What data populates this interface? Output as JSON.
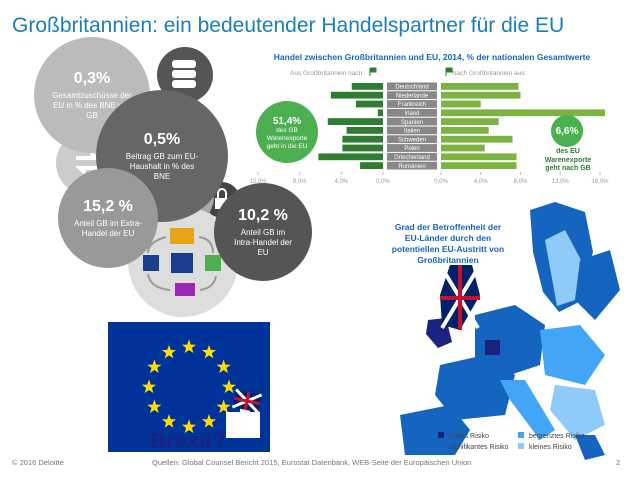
{
  "header": {
    "title": "Großbritannien: ein bedeutender Handelspartner für die EU"
  },
  "bubbles": [
    {
      "value": "0,3%",
      "text": "Gesamtzuschüsse der EU in % des BNE von GB"
    },
    {
      "value": "0,5%",
      "text": "Beitrag GB zum EU-Haushalt in % des BNE"
    },
    {
      "value": "15,2 %",
      "text": "Anteil GB im Extra-Handel der EU"
    },
    {
      "value": "10,2 %",
      "text": "Anteil GB im Intra-Handel der EU"
    }
  ],
  "chart_data": {
    "type": "butterfly",
    "title": "Handel zwischen Großbritannien und EU, 2014, % der nationalen Gesamtwerte",
    "categories": [
      "Deutschland",
      "Niederlande",
      "Frankreich",
      "Irland",
      "Spanien",
      "Italien",
      "Schweden",
      "Polen",
      "Griechenland",
      "Rumänien"
    ],
    "series": [
      {
        "name": "Aus Großbritannien nach:",
        "color": "#2e7d32",
        "values": [
          3.0,
          5.0,
          2.6,
          0.5,
          5.3,
          3.5,
          3.9,
          3.9,
          6.2,
          2.2
        ]
      },
      {
        "name": "Nach Großbritannien aus:",
        "color": "#7cb342",
        "values": [
          7.8,
          8.0,
          4.0,
          16.5,
          5.8,
          4.8,
          7.2,
          4.4,
          7.6,
          7.6
        ]
      }
    ],
    "xlim": [
      0,
      12
    ],
    "xticks": [
      {
        "value": 12,
        "label": "12,0%"
      },
      {
        "value": 8,
        "label": "8,0%"
      },
      {
        "value": 4,
        "label": "4,0%"
      },
      {
        "value": 0,
        "label": "0,0%"
      }
    ],
    "x2lim": [
      0,
      16
    ],
    "x2ticks": [
      {
        "value": 0,
        "label": "0,0%"
      },
      {
        "value": 4,
        "label": "4,0%"
      },
      {
        "value": 8,
        "label": "8,0%"
      },
      {
        "value": 12,
        "label": "12,0%"
      },
      {
        "value": 16,
        "label": "16,0%"
      }
    ],
    "callouts": [
      {
        "value": "51,4%",
        "text": "des GB Warenexporte geht in die EU"
      },
      {
        "value": "6,6%",
        "text": "des EU Warenexporte geht nach GB"
      }
    ]
  },
  "map": {
    "caption": "Grad der Betroffenheit der EU-Länder durch den potentiellen EU-Austritt von Großbritannien",
    "legend": [
      {
        "label": "hohes Risiko",
        "color": "#1a237e"
      },
      {
        "label": "begrenztes Risiko",
        "color": "#42a5f5"
      },
      {
        "label": "signifikantes Risiko",
        "color": "#1565c0"
      },
      {
        "label": "kleines Risiko",
        "color": "#90caf9"
      }
    ]
  },
  "brexit": "Brexit?",
  "footer": {
    "copyright": "© 2016 Deloitte",
    "sources": "Quellen: Global Counsel Bericht 2015, Eurostat Datenbank, WEB-Seite der Europäischen Union",
    "page": "2"
  }
}
